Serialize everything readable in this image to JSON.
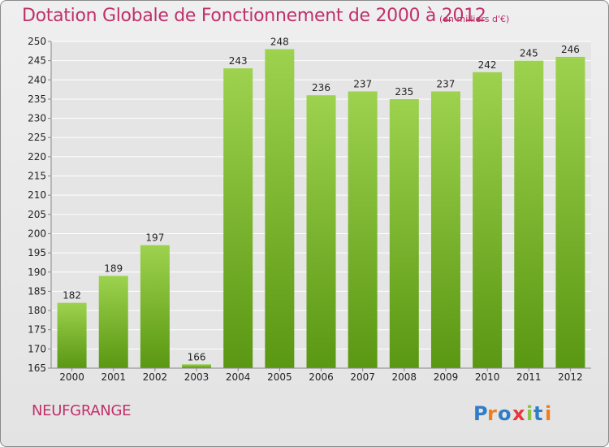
{
  "header": {
    "title": "Dotation Globale de Fonctionnement de 2000 à 2012",
    "unit_note": "(en milliers d'€)"
  },
  "footer": {
    "town": "NEUFGRANGE",
    "brand": "Proxiti"
  },
  "colors": {
    "title": "#c0306a",
    "bar_light": "#9dd24e",
    "bar_dark": "#5a9712",
    "grid": "#ffffff",
    "axis_text": "#222222"
  },
  "chart_data": {
    "type": "bar",
    "categories": [
      "2000",
      "2001",
      "2002",
      "2003",
      "2004",
      "2005",
      "2006",
      "2007",
      "2008",
      "2009",
      "2010",
      "2011",
      "2012"
    ],
    "values": [
      182,
      189,
      197,
      166,
      243,
      248,
      236,
      237,
      235,
      237,
      242,
      245,
      246
    ],
    "value_labels": [
      "182",
      "189",
      "197",
      "166",
      "243",
      "248",
      "236",
      "237",
      "235",
      "237",
      "242",
      "245",
      "246"
    ],
    "ylim": [
      165,
      250
    ],
    "yticks": [
      165,
      170,
      175,
      180,
      185,
      190,
      195,
      200,
      205,
      210,
      215,
      220,
      225,
      230,
      235,
      240,
      245,
      250
    ],
    "grid": true,
    "title": "Dotation Globale de Fonctionnement de 2000 à 2012",
    "xlabel": "",
    "ylabel": ""
  }
}
